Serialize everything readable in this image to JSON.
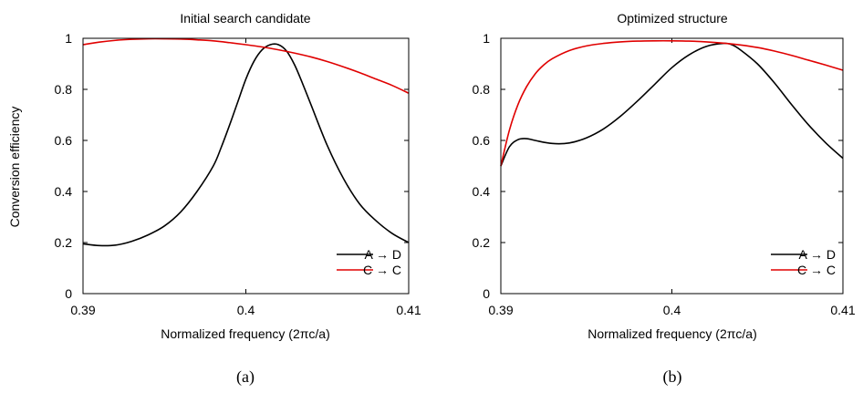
{
  "figure": {
    "ylabel": "Conversion efficiency",
    "xlabel": "Normalized frequency (2πc/a)",
    "captions": [
      "(a)",
      "(b)"
    ]
  },
  "chart_data": [
    {
      "type": "line",
      "title": "Initial search candidate",
      "xlabel": "Normalized frequency (2πc/a)",
      "ylabel": "Conversion efficiency",
      "xlim": [
        0.39,
        0.41
      ],
      "ylim": [
        0,
        1
      ],
      "xticks": [
        "0.39",
        "0.4",
        "0.41"
      ],
      "yticks": [
        "0",
        "0.2",
        "0.4",
        "0.6",
        "0.8",
        "1"
      ],
      "legend": "bottom-right",
      "series": [
        {
          "name": "A → D",
          "color": "#000000",
          "x": [
            0.39,
            0.391,
            0.392,
            0.393,
            0.394,
            0.395,
            0.396,
            0.397,
            0.398,
            0.3985,
            0.399,
            0.3995,
            0.4,
            0.4005,
            0.401,
            0.4015,
            0.402,
            0.4025,
            0.403,
            0.4035,
            0.404,
            0.405,
            0.406,
            0.407,
            0.408,
            0.409,
            0.41
          ],
          "y": [
            0.195,
            0.188,
            0.19,
            0.205,
            0.23,
            0.265,
            0.32,
            0.4,
            0.5,
            0.575,
            0.66,
            0.75,
            0.84,
            0.91,
            0.955,
            0.975,
            0.975,
            0.95,
            0.895,
            0.82,
            0.74,
            0.58,
            0.45,
            0.35,
            0.285,
            0.235,
            0.2
          ]
        },
        {
          "name": "C → C",
          "color": "#e00000",
          "x": [
            0.39,
            0.391,
            0.392,
            0.393,
            0.394,
            0.395,
            0.396,
            0.397,
            0.398,
            0.399,
            0.4,
            0.401,
            0.402,
            0.403,
            0.404,
            0.405,
            0.406,
            0.407,
            0.408,
            0.409,
            0.41
          ],
          "y": [
            0.975,
            0.985,
            0.992,
            0.996,
            0.998,
            0.998,
            0.997,
            0.994,
            0.99,
            0.983,
            0.975,
            0.966,
            0.955,
            0.942,
            0.927,
            0.909,
            0.888,
            0.865,
            0.84,
            0.815,
            0.785
          ]
        }
      ]
    },
    {
      "type": "line",
      "title": "Optimized structure",
      "xlabel": "Normalized frequency (2πc/a)",
      "ylabel": "",
      "xlim": [
        0.39,
        0.41
      ],
      "ylim": [
        0,
        1
      ],
      "xticks": [
        "0.39",
        "0.4",
        "0.41"
      ],
      "yticks": [
        "0",
        "0.2",
        "0.4",
        "0.6",
        "0.8",
        "1"
      ],
      "legend": "bottom-right",
      "series": [
        {
          "name": "A → D",
          "color": "#000000",
          "x": [
            0.39,
            0.3905,
            0.391,
            0.3915,
            0.392,
            0.393,
            0.394,
            0.395,
            0.396,
            0.397,
            0.398,
            0.399,
            0.4,
            0.401,
            0.402,
            0.403,
            0.4035,
            0.404,
            0.405,
            0.406,
            0.407,
            0.408,
            0.409,
            0.41
          ],
          "y": [
            0.5,
            0.575,
            0.603,
            0.607,
            0.6,
            0.588,
            0.59,
            0.61,
            0.645,
            0.695,
            0.755,
            0.82,
            0.885,
            0.935,
            0.968,
            0.98,
            0.975,
            0.955,
            0.9,
            0.825,
            0.74,
            0.66,
            0.59,
            0.53
          ]
        },
        {
          "name": "C → C",
          "color": "#e00000",
          "x": [
            0.39,
            0.3905,
            0.391,
            0.3915,
            0.392,
            0.3925,
            0.393,
            0.394,
            0.395,
            0.396,
            0.397,
            0.398,
            0.399,
            0.4,
            0.401,
            0.402,
            0.403,
            0.404,
            0.405,
            0.406,
            0.407,
            0.408,
            0.409,
            0.41
          ],
          "y": [
            0.5,
            0.64,
            0.74,
            0.81,
            0.86,
            0.895,
            0.92,
            0.952,
            0.97,
            0.98,
            0.986,
            0.989,
            0.99,
            0.99,
            0.989,
            0.986,
            0.981,
            0.974,
            0.964,
            0.95,
            0.933,
            0.914,
            0.895,
            0.875
          ]
        }
      ]
    }
  ]
}
